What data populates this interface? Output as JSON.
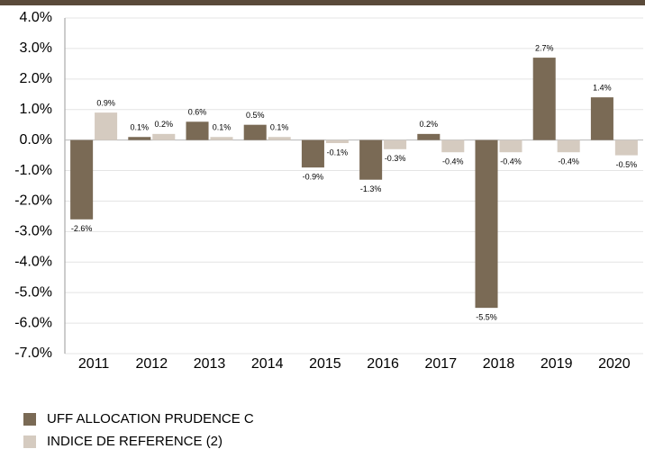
{
  "chart_data": {
    "type": "bar",
    "categories": [
      "2011",
      "2012",
      "2013",
      "2014",
      "2015",
      "2016",
      "2017",
      "2018",
      "2019",
      "2020"
    ],
    "series": [
      {
        "name": "UFF ALLOCATION PRUDENCE C",
        "color": "#7a6a55",
        "values": [
          -2.6,
          0.1,
          0.6,
          0.5,
          -0.9,
          -1.3,
          0.2,
          -5.5,
          2.7,
          1.4
        ],
        "value_labels": [
          "-2.6%",
          "0.1%",
          "0.6%",
          "0.5%",
          "-0.9%",
          "-1.3%",
          "0.2%",
          "-5.5%",
          "2.7%",
          "1.4%"
        ]
      },
      {
        "name": "INDICE DE REFERENCE (2)",
        "color": "#d5cbc0",
        "values": [
          0.9,
          0.2,
          0.1,
          0.1,
          -0.1,
          -0.3,
          -0.4,
          -0.4,
          -0.4,
          -0.5
        ],
        "value_labels": [
          "0.9%",
          "0.2%",
          "0.1%",
          "0.1%",
          "-0.1%",
          "-0.3%",
          "-0.4%",
          "-0.4%",
          "-0.4%",
          "-0.5%"
        ]
      }
    ],
    "ylim": [
      -7,
      4
    ],
    "yticks": [
      {
        "value": 4,
        "label": "4.0%"
      },
      {
        "value": 3,
        "label": "3.0%"
      },
      {
        "value": 2,
        "label": "2.0%"
      },
      {
        "value": 1,
        "label": "1.0%"
      },
      {
        "value": 0,
        "label": "0.0%"
      },
      {
        "value": -1,
        "label": "-1.0%"
      },
      {
        "value": -2,
        "label": "-2.0%"
      },
      {
        "value": -3,
        "label": "-3.0%"
      },
      {
        "value": -4,
        "label": "-4.0%"
      },
      {
        "value": -5,
        "label": "-5.0%"
      },
      {
        "value": -6,
        "label": "-6.0%"
      },
      {
        "value": -7,
        "label": "-7.0%"
      }
    ],
    "grid": true,
    "legend": "bottom-left"
  }
}
